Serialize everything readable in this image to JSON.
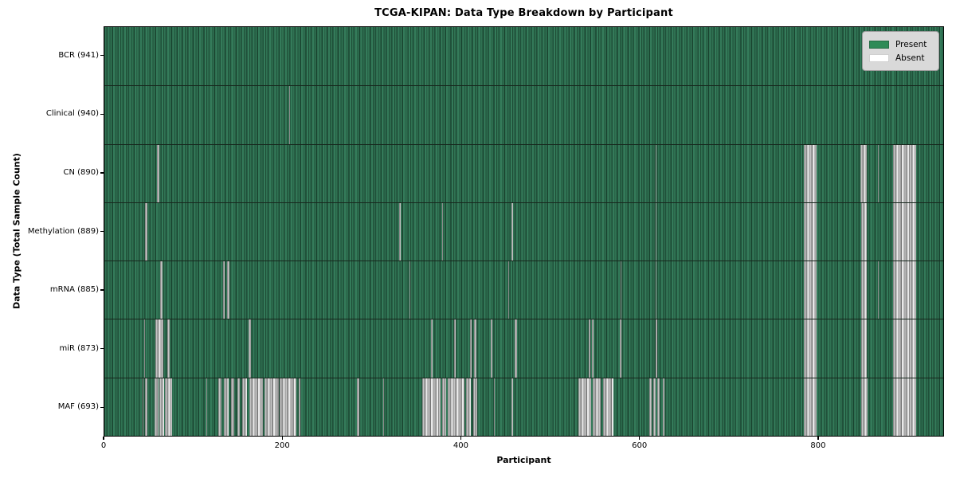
{
  "chart_data": {
    "type": "heatmap",
    "title": "TCGA-KIPAN: Data Type Breakdown by Participant",
    "xlabel": "Participant",
    "ylabel": "Data Type (Total Sample Count)",
    "x_ticks": [
      0,
      200,
      400,
      600,
      800
    ],
    "x_range": [
      0,
      941
    ],
    "n_participants": 941,
    "grid": false,
    "legend_position": "upper right",
    "colors": {
      "present": "#2e8b57",
      "absent": "#ffffff",
      "legend_bg": "#d9d9d9"
    },
    "legend": [
      {
        "label": "Present",
        "color": "#2e8b57"
      },
      {
        "label": "Absent",
        "color": "#ffffff"
      }
    ],
    "rows": [
      {
        "label": "BCR (941)",
        "data_type": "BCR",
        "total_samples": 941,
        "absent_ranges": []
      },
      {
        "label": "Clinical (940)",
        "data_type": "Clinical",
        "total_samples": 940,
        "absent_ranges": [
          [
            207,
            208
          ]
        ]
      },
      {
        "label": "CN (890)",
        "data_type": "CN",
        "total_samples": 890,
        "absent_ranges": [
          [
            59,
            62
          ],
          [
            618,
            619
          ],
          [
            785,
            799
          ],
          [
            848,
            855
          ],
          [
            868,
            869
          ],
          [
            885,
            911
          ]
        ]
      },
      {
        "label": "Methylation (889)",
        "data_type": "Methylation",
        "total_samples": 889,
        "absent_ranges": [
          [
            46,
            48
          ],
          [
            331,
            332
          ],
          [
            379,
            380
          ],
          [
            457,
            458
          ],
          [
            618,
            619
          ],
          [
            785,
            799
          ],
          [
            849,
            855
          ],
          [
            885,
            911
          ]
        ]
      },
      {
        "label": "mRNA (885)",
        "data_type": "mRNA",
        "total_samples": 885,
        "absent_ranges": [
          [
            63,
            65
          ],
          [
            133,
            135
          ],
          [
            138,
            140
          ],
          [
            342,
            343
          ],
          [
            453,
            454
          ],
          [
            579,
            580
          ],
          [
            618,
            619
          ],
          [
            785,
            799
          ],
          [
            849,
            855
          ],
          [
            868,
            869
          ],
          [
            885,
            911
          ]
        ]
      },
      {
        "label": "miR (873)",
        "data_type": "miR",
        "total_samples": 873,
        "absent_ranges": [
          [
            45,
            46
          ],
          [
            57,
            66
          ],
          [
            71,
            73
          ],
          [
            162,
            164
          ],
          [
            366,
            368
          ],
          [
            392,
            394
          ],
          [
            410,
            412
          ],
          [
            415,
            417
          ],
          [
            433,
            435
          ],
          [
            460,
            463
          ],
          [
            543,
            545
          ],
          [
            547,
            549
          ],
          [
            578,
            580
          ],
          [
            618,
            620
          ],
          [
            785,
            799
          ],
          [
            849,
            855
          ],
          [
            885,
            911
          ]
        ]
      },
      {
        "label": "MAF (693)",
        "data_type": "MAF",
        "total_samples": 693,
        "absent_ranges": [
          [
            43,
            44
          ],
          [
            46,
            48
          ],
          [
            56,
            61
          ],
          [
            62,
            67
          ],
          [
            68,
            76
          ],
          [
            114,
            115
          ],
          [
            128,
            131
          ],
          [
            134,
            139
          ],
          [
            142,
            146
          ],
          [
            149,
            152
          ],
          [
            155,
            160
          ],
          [
            163,
            178
          ],
          [
            180,
            196
          ],
          [
            197,
            215
          ],
          [
            218,
            220
          ],
          [
            283,
            286
          ],
          [
            313,
            314
          ],
          [
            357,
            377
          ],
          [
            379,
            383
          ],
          [
            385,
            404
          ],
          [
            406,
            411
          ],
          [
            414,
            418
          ],
          [
            437,
            438
          ],
          [
            457,
            458
          ],
          [
            532,
            546
          ],
          [
            548,
            557
          ],
          [
            559,
            571
          ],
          [
            611,
            614
          ],
          [
            616,
            618
          ],
          [
            620,
            623
          ],
          [
            626,
            628
          ],
          [
            785,
            799
          ],
          [
            849,
            856
          ],
          [
            885,
            911
          ]
        ]
      }
    ]
  }
}
